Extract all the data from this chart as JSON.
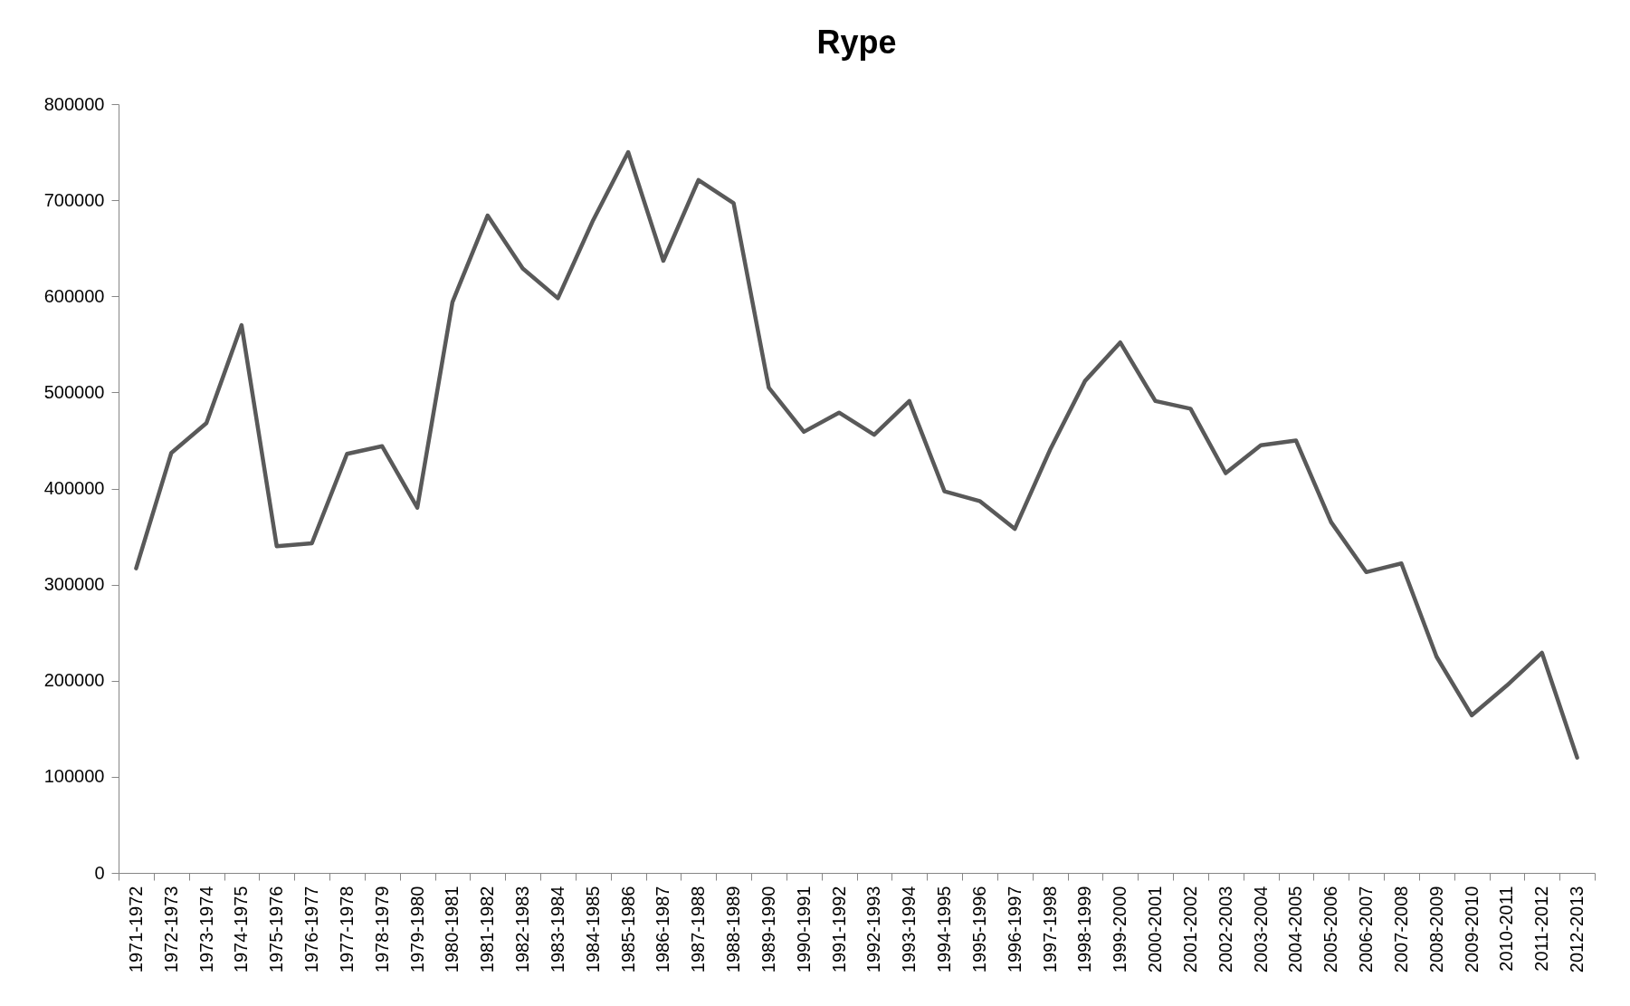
{
  "chart_data": {
    "type": "line",
    "title": "Rype",
    "categories": [
      "1971-1972",
      "1972-1973",
      "1973-1974",
      "1974-1975",
      "1975-1976",
      "1976-1977",
      "1977-1978",
      "1978-1979",
      "1979-1980",
      "1980-1981",
      "1981-1982",
      "1982-1983",
      "1983-1984",
      "1984-1985",
      "1985-1986",
      "1986-1987",
      "1987-1988",
      "1988-1989",
      "1989-1990",
      "1990-1991",
      "1991-1992",
      "1992-1993",
      "1993-1994",
      "1994-1995",
      "1995-1996",
      "1996-1997",
      "1997-1998",
      "1998-1999",
      "1999-2000",
      "2000-2001",
      "2001-2002",
      "2002-2003",
      "2003-2004",
      "2004-2005",
      "2005-2006",
      "2006-2007",
      "2007-2008",
      "2008-2009",
      "2009-2010",
      "2010-2011",
      "2011-2012",
      "2012-2013"
    ],
    "series": [
      {
        "color": "#595959",
        "values": [
          317000,
          437000,
          468000,
          570000,
          340000,
          343000,
          436000,
          444000,
          380000,
          594000,
          684000,
          629000,
          598000,
          679000,
          750000,
          637000,
          721000,
          697000,
          505000,
          459000,
          479000,
          456000,
          491000,
          397000,
          387000,
          358000,
          440000,
          512000,
          552000,
          491000,
          483000,
          416000,
          445000,
          450000,
          365000,
          313000,
          322000,
          225000,
          164000,
          195000,
          229000,
          120000
        ]
      }
    ],
    "ylim": [
      0,
      800000
    ],
    "yticks": [
      0,
      100000,
      200000,
      300000,
      400000,
      500000,
      600000,
      700000,
      800000
    ],
    "grid": false,
    "legend": false,
    "marker": "none",
    "line_style": "solid"
  }
}
